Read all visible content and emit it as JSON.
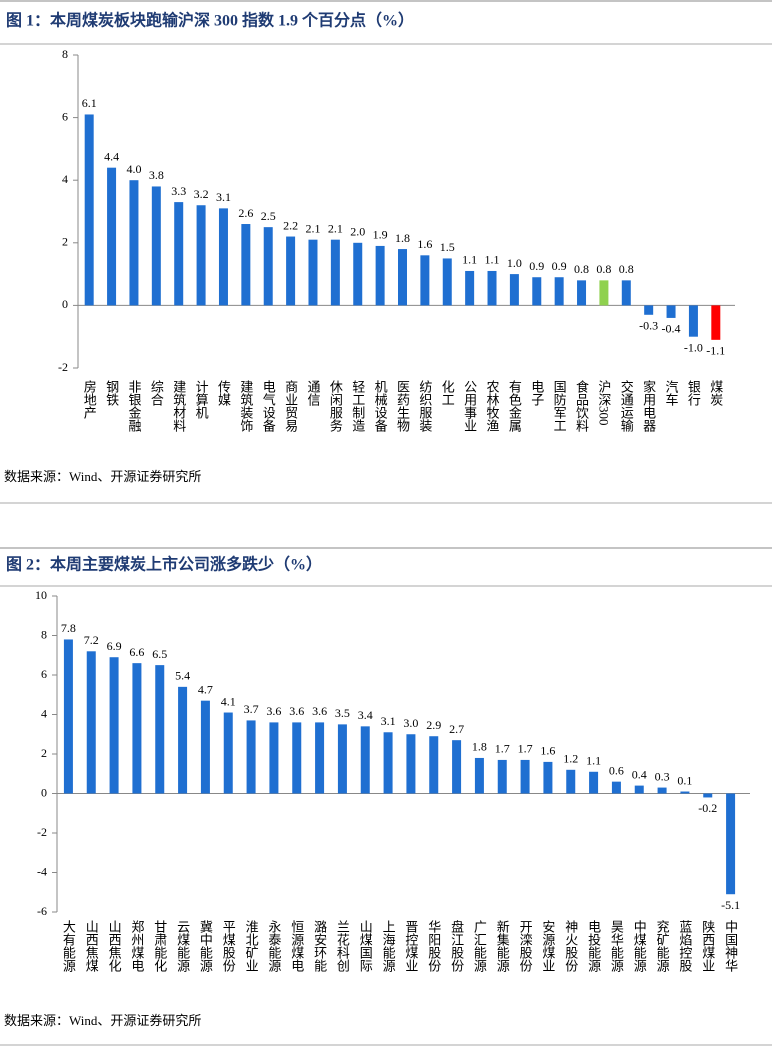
{
  "chart_data": [
    {
      "type": "bar",
      "title": "图 1：本周煤炭板块跑输沪深 300 指数 1.9 个百分点（%）",
      "source": "数据来源：Wind、开源证券研究所",
      "categories": [
        "房地产",
        "钢铁",
        "非银金融",
        "综合",
        "建筑材料",
        "计算机",
        "传媒",
        "建筑装饰",
        "电气设备",
        "商业贸易",
        "通信",
        "休闲服务",
        "轻工制造",
        "机械设备",
        "医药生物",
        "纺织服装",
        "化工",
        "公用事业",
        "农林牧渔",
        "有色金属",
        "电子",
        "国防军工",
        "食品饮料",
        "沪深300",
        "交通运输",
        "家用电器",
        "汽车",
        "银行",
        "煤炭"
      ],
      "values": [
        6.1,
        4.4,
        4.0,
        3.8,
        3.3,
        3.2,
        3.1,
        2.6,
        2.5,
        2.2,
        2.1,
        2.1,
        2.0,
        1.9,
        1.8,
        1.6,
        1.5,
        1.1,
        1.1,
        1.0,
        0.9,
        0.9,
        0.8,
        0.8,
        0.8,
        -0.3,
        -0.4,
        -1.0,
        -1.1
      ],
      "value_labels": [
        "6.1",
        "4.4",
        "4.0",
        "3.8",
        "3.3",
        "3.2",
        "3.1",
        "2.6",
        "2.5",
        "2.2",
        "2.1",
        "2.1",
        "2.0",
        "1.9",
        "1.8",
        "1.6",
        "1.5",
        "1.1",
        "1.1",
        "1.0",
        "0.9",
        "0.9",
        "0.8",
        "0.8",
        "0.8",
        "-0.3",
        "-0.4",
        "-1.0",
        "-1.1"
      ],
      "colors": [
        "#1f6fd1",
        "#1f6fd1",
        "#1f6fd1",
        "#1f6fd1",
        "#1f6fd1",
        "#1f6fd1",
        "#1f6fd1",
        "#1f6fd1",
        "#1f6fd1",
        "#1f6fd1",
        "#1f6fd1",
        "#1f6fd1",
        "#1f6fd1",
        "#1f6fd1",
        "#1f6fd1",
        "#1f6fd1",
        "#1f6fd1",
        "#1f6fd1",
        "#1f6fd1",
        "#1f6fd1",
        "#1f6fd1",
        "#1f6fd1",
        "#1f6fd1",
        "#8fd14f",
        "#1f6fd1",
        "#1f6fd1",
        "#1f6fd1",
        "#1f6fd1",
        "#ff0000"
      ],
      "ylim": [
        -2,
        8
      ],
      "yticks": [
        -2,
        0,
        2,
        4,
        6,
        8
      ]
    },
    {
      "type": "bar",
      "title": "图 2：本周主要煤炭上市公司涨多跌少（%）",
      "source": "数据来源：Wind、开源证券研究所",
      "categories": [
        "大有能源",
        "山西焦煤",
        "山西焦化",
        "郑州煤电",
        "甘肃能化",
        "云煤能源",
        "冀中能源",
        "平煤股份",
        "淮北矿业",
        "永泰能源",
        "恒源煤电",
        "潞安环能",
        "兰花科创",
        "山煤国际",
        "上海能源",
        "晋控煤业",
        "华阳股份",
        "盘江股份",
        "广汇能源",
        "新集能源",
        "开滦股份",
        "安源煤业",
        "神火股份",
        "电投能源",
        "昊华能源",
        "中煤能源",
        "兖矿能源",
        "蓝焰控股",
        "陕西煤业",
        "中国神华"
      ],
      "values": [
        7.8,
        7.2,
        6.9,
        6.6,
        6.5,
        5.4,
        4.7,
        4.1,
        3.7,
        3.6,
        3.6,
        3.6,
        3.5,
        3.4,
        3.1,
        3.0,
        2.9,
        2.7,
        1.8,
        1.7,
        1.7,
        1.6,
        1.2,
        1.1,
        0.6,
        0.4,
        0.3,
        0.1,
        -0.2,
        -5.1
      ],
      "value_labels": [
        "7.8",
        "7.2",
        "6.9",
        "6.6",
        "6.5",
        "5.4",
        "4.7",
        "4.1",
        "3.7",
        "3.6",
        "3.6",
        "3.6",
        "3.5",
        "3.4",
        "3.1",
        "3.0",
        "2.9",
        "2.7",
        "1.8",
        "1.7",
        "1.7",
        "1.6",
        "1.2",
        "1.1",
        "0.6",
        "0.4",
        "0.3",
        "0.1",
        "-0.2",
        "-5.1"
      ],
      "color": "#1f6fd1",
      "ylim": [
        -6,
        10
      ],
      "yticks": [
        -6,
        -4,
        -2,
        0,
        2,
        4,
        6,
        8,
        10
      ]
    }
  ]
}
